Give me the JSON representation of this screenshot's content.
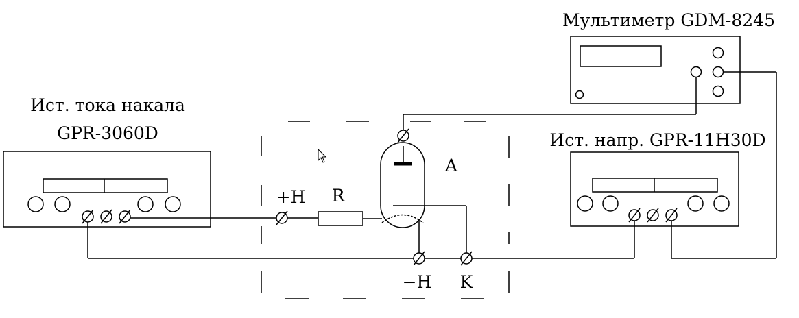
{
  "labels": {
    "left_source_line1": "Ист. тока накала",
    "left_source_line2": "GPR-3060D",
    "multimeter": "Мультиметр GDM-8245",
    "right_source": "Ист. напр. GPR-11H30D",
    "plus_h": "+H",
    "resistor": "R",
    "anode": "A",
    "minus_h": "−H",
    "cathode": "K"
  }
}
